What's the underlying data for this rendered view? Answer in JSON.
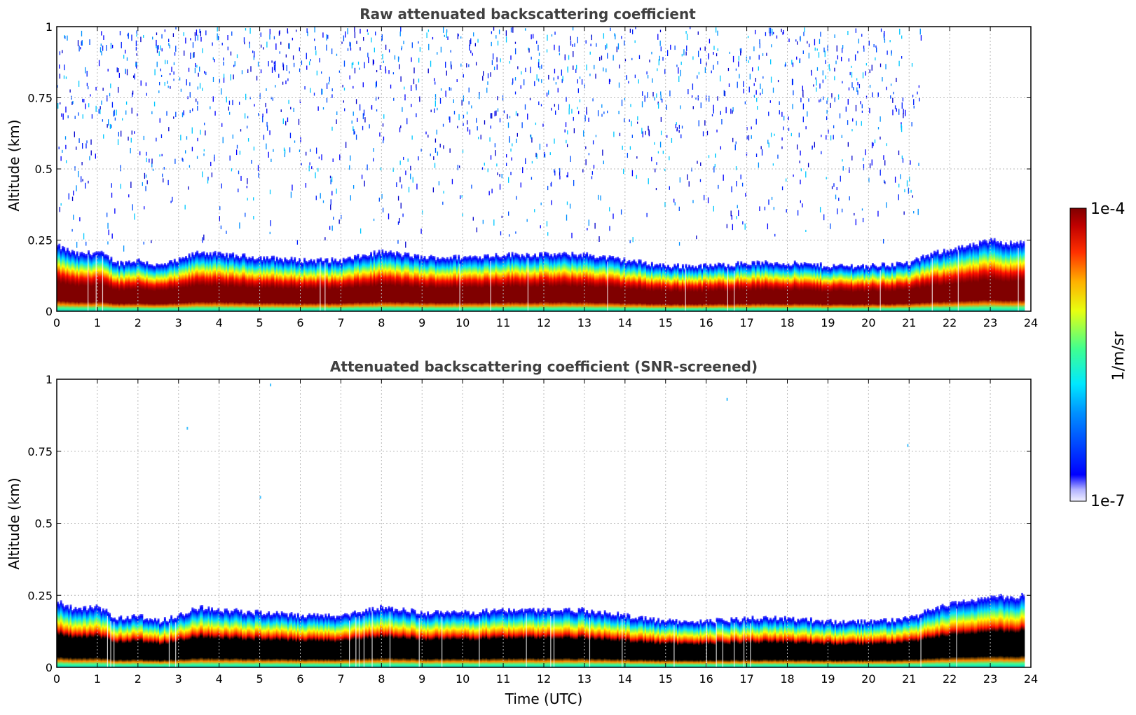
{
  "chart_data": [
    {
      "type": "heatmap",
      "title": "Raw attenuated backscattering coefficient",
      "xlabel": "",
      "ylabel": "Altitude (km)",
      "xlim": [
        0,
        24
      ],
      "ylim": [
        0,
        1
      ],
      "xticks": [
        "0",
        "1",
        "2",
        "3",
        "4",
        "5",
        "6",
        "7",
        "8",
        "9",
        "10",
        "11",
        "12",
        "13",
        "14",
        "15",
        "16",
        "17",
        "18",
        "19",
        "20",
        "21",
        "22",
        "23",
        "24"
      ],
      "yticks": [
        "0",
        "0.25",
        "0.5",
        "0.75",
        "1"
      ],
      "yticks_values": [
        0,
        0.25,
        0.5,
        0.75,
        1
      ],
      "grid": true,
      "colormap": "jet",
      "noise_present": true,
      "noise_end_hour": 21.3,
      "layer": {
        "time": [
          0,
          0.5,
          1,
          1.5,
          2,
          2.5,
          3,
          3.5,
          4,
          5,
          6,
          7,
          8,
          8.5,
          9,
          10,
          11,
          12,
          13,
          14,
          15,
          16,
          17,
          18,
          19,
          20,
          21,
          21.5,
          22,
          22.5,
          23,
          23.5,
          23.8
        ],
        "top_km": [
          0.23,
          0.2,
          0.21,
          0.17,
          0.18,
          0.16,
          0.18,
          0.21,
          0.2,
          0.19,
          0.18,
          0.18,
          0.21,
          0.2,
          0.19,
          0.19,
          0.2,
          0.2,
          0.2,
          0.18,
          0.16,
          0.16,
          0.17,
          0.17,
          0.16,
          0.16,
          0.17,
          0.2,
          0.22,
          0.23,
          0.25,
          0.24,
          0.25
        ],
        "bottom_km": [
          0.02,
          0.02,
          0.01,
          0.0,
          0.0,
          0.01,
          0.01,
          0.01,
          0.01,
          0.01,
          0.01,
          0.01,
          0.04,
          0.04,
          0.02,
          0.02,
          0.02,
          0.03,
          0.03,
          0.02,
          0.01,
          0.01,
          0.01,
          0.01,
          0.0,
          0.0,
          0.0,
          0.03,
          0.05,
          0.06,
          0.07,
          0.08,
          0.08
        ]
      }
    },
    {
      "type": "heatmap",
      "title": "Attenuated backscattering coefficient (SNR-screened)",
      "xlabel": "Time (UTC)",
      "ylabel": "Altitude (km)",
      "xlim": [
        0,
        24
      ],
      "ylim": [
        0,
        1
      ],
      "xticks": [
        "0",
        "1",
        "2",
        "3",
        "4",
        "5",
        "6",
        "7",
        "8",
        "9",
        "10",
        "11",
        "12",
        "13",
        "14",
        "15",
        "16",
        "17",
        "18",
        "19",
        "20",
        "21",
        "22",
        "23",
        "24"
      ],
      "yticks": [
        "0",
        "0.25",
        "0.5",
        "0.75",
        "1"
      ],
      "yticks_values": [
        0,
        0.25,
        0.5,
        0.75,
        1
      ],
      "grid": true,
      "colormap": "jet",
      "saturated_color": "#000000",
      "noise_present": false,
      "isolated_points": [
        {
          "time": 3.2,
          "alt_km": 0.83
        },
        {
          "time": 5.25,
          "alt_km": 0.98
        },
        {
          "time": 5.0,
          "alt_km": 0.59
        },
        {
          "time": 16.5,
          "alt_km": 0.93
        },
        {
          "time": 20.95,
          "alt_km": 0.77
        }
      ]
    }
  ],
  "colorbar": {
    "max_label": "1e-4",
    "min_label": "1e-7",
    "unit_label": "1/m/sr",
    "scale": "log",
    "range": [
      1e-07,
      0.0001
    ]
  }
}
